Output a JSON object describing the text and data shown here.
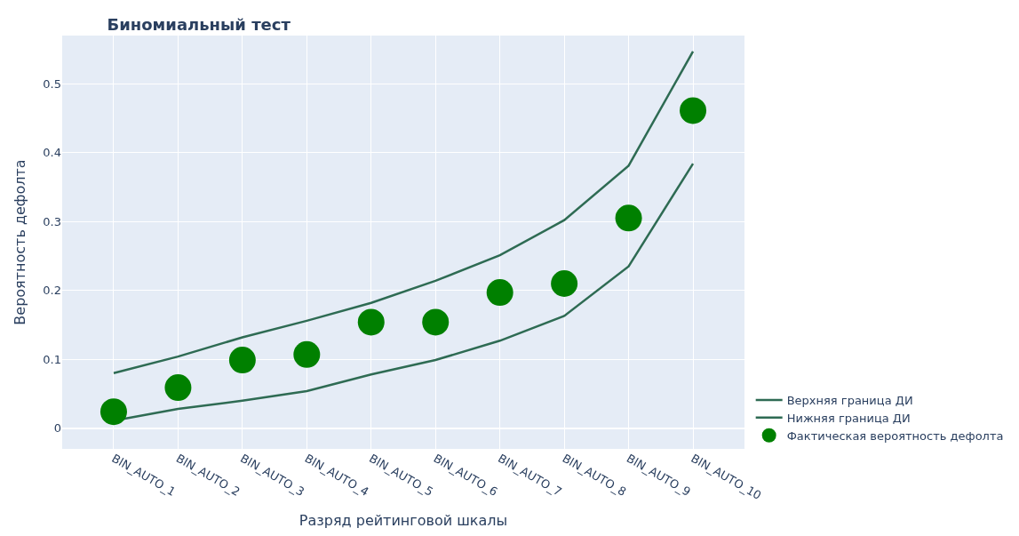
{
  "chart_data": {
    "type": "line",
    "title": "Биномиальный тест",
    "xlabel": "Разряд рейтинговой шкалы",
    "ylabel": "Вероятность дефолта",
    "categories": [
      "BIN_AUTO_1",
      "BIN_AUTO_2",
      "BIN_AUTO_3",
      "BIN_AUTO_4",
      "BIN_AUTO_5",
      "BIN_AUTO_6",
      "BIN_AUTO_7",
      "BIN_AUTO_8",
      "BIN_AUTO_9",
      "BIN_AUTO_10"
    ],
    "series": [
      {
        "name": "Верхняя граница ДИ",
        "color": "#2e6b53",
        "values": [
          0.08,
          0.104,
          0.132,
          0.156,
          0.182,
          0.214,
          0.251,
          0.302,
          0.381,
          0.547
        ]
      },
      {
        "name": "Нижняя граница ДИ",
        "color": "#2e6b53",
        "values": [
          0.011,
          0.028,
          0.04,
          0.054,
          0.078,
          0.099,
          0.127,
          0.163,
          0.235,
          0.384
        ]
      },
      {
        "name": "Фактическая вероятность дефолта",
        "type": "scatter",
        "marker": "circle",
        "color": "#008000",
        "values": [
          0.024,
          0.059,
          0.099,
          0.107,
          0.154,
          0.154,
          0.197,
          0.21,
          0.305,
          0.461
        ]
      }
    ],
    "ylim": [
      -0.03,
      0.57
    ],
    "yticks": [
      0,
      0.1,
      0.2,
      0.3,
      0.4,
      0.5
    ],
    "grid": true,
    "legend": "bottom right"
  }
}
